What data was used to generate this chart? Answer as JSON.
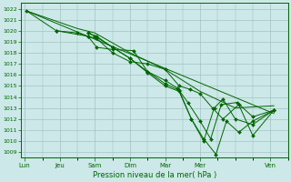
{
  "xlabel": "Pression niveau de la mer( hPa )",
  "bg_color": "#cce8e8",
  "grid_color": "#99bbbb",
  "line_color": "#006600",
  "marker_color": "#006600",
  "ylim": [
    1008.5,
    1022.5
  ],
  "yticks": [
    1009,
    1010,
    1011,
    1012,
    1013,
    1014,
    1015,
    1016,
    1017,
    1018,
    1019,
    1020,
    1021,
    1022
  ],
  "x_labels": [
    "Lun",
    "Jeu",
    "Sam",
    "Dim",
    "Mar",
    "Mer",
    "Ven"
  ],
  "x_positions": [
    0,
    1,
    2,
    3,
    4,
    5,
    7
  ],
  "xlim": [
    -0.1,
    7.5
  ],
  "series": [
    {
      "x": [
        0.05,
        0.9,
        1.8,
        2.05,
        2.5,
        3.1,
        3.5,
        4.0,
        4.35,
        4.65,
        5.0,
        5.3,
        5.6,
        6.05,
        6.5,
        7.1
      ],
      "y": [
        1021.8,
        1020.0,
        1019.5,
        1018.5,
        1018.3,
        1018.2,
        1016.3,
        1015.5,
        1014.8,
        1013.5,
        1011.8,
        1010.2,
        1013.3,
        1013.5,
        1012.2,
        1012.8
      ],
      "has_markers": true,
      "lw": 0.7
    },
    {
      "x": [
        0.05,
        7.1
      ],
      "y": [
        1021.8,
        1012.5
      ],
      "has_markers": false,
      "lw": 0.7
    },
    {
      "x": [
        0.05,
        1.5,
        2.0,
        3.0,
        4.0,
        5.0,
        6.0,
        7.1
      ],
      "y": [
        1021.8,
        1020.2,
        1019.8,
        1018.0,
        1016.5,
        1014.5,
        1013.0,
        1013.2
      ],
      "has_markers": false,
      "lw": 0.7
    },
    {
      "x": [
        0.9,
        1.5,
        1.8,
        2.05,
        2.5,
        3.0,
        3.5,
        4.0,
        4.4,
        4.7,
        5.0,
        5.35,
        5.65,
        6.1,
        6.5,
        7.1
      ],
      "y": [
        1020.0,
        1019.8,
        1019.5,
        1019.3,
        1018.0,
        1017.2,
        1017.0,
        1016.5,
        1015.0,
        1014.7,
        1014.3,
        1013.0,
        1012.0,
        1013.3,
        1010.5,
        1012.8
      ],
      "has_markers": true,
      "lw": 0.7
    },
    {
      "x": [
        1.8,
        2.0,
        2.5,
        3.0,
        3.5,
        4.0,
        4.4,
        4.75,
        5.1,
        5.4,
        5.65,
        6.0,
        6.5,
        7.1
      ],
      "y": [
        1019.8,
        1019.5,
        1018.5,
        1017.5,
        1016.3,
        1015.2,
        1014.6,
        1012.0,
        1010.0,
        1013.0,
        1013.8,
        1012.0,
        1011.5,
        1012.8
      ],
      "has_markers": true,
      "lw": 0.7
    },
    {
      "x": [
        1.8,
        2.05,
        2.5,
        3.0,
        3.5,
        4.0,
        4.4,
        4.75,
        5.1,
        5.45,
        5.75,
        6.1,
        6.5,
        7.1
      ],
      "y": [
        1019.8,
        1019.5,
        1018.5,
        1017.5,
        1016.2,
        1015.0,
        1014.5,
        1012.0,
        1010.2,
        1008.8,
        1011.8,
        1010.8,
        1011.8,
        1012.8
      ],
      "has_markers": true,
      "lw": 0.7
    }
  ]
}
